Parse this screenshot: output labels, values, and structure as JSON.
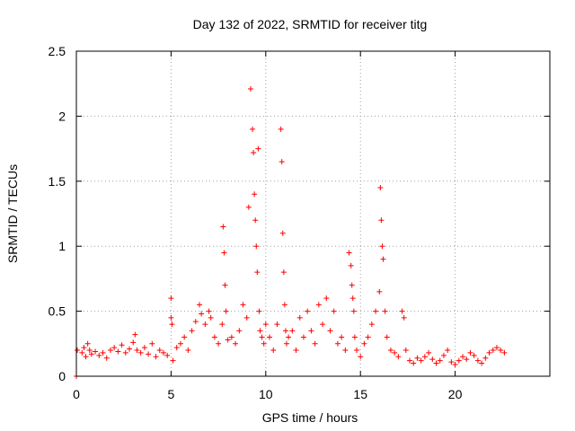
{
  "chart_data": {
    "type": "scatter",
    "title": "Day 132 of 2022, SRMTID for receiver titg",
    "xlabel": "GPS time / hours",
    "ylabel": "SRMTID / TECUs",
    "xlim": [
      0,
      25
    ],
    "ylim": [
      0,
      2.5
    ],
    "x_ticks": [
      0,
      5,
      10,
      15,
      20
    ],
    "x_tick_labels": [
      "0",
      "5",
      "10",
      "15",
      "20"
    ],
    "y_ticks": [
      0,
      0.5,
      1,
      1.5,
      2,
      2.5
    ],
    "y_tick_labels": [
      "0",
      "0.5",
      "1",
      "1.5",
      "2",
      "2.5"
    ],
    "grid": true,
    "marker": "+",
    "series": [
      {
        "name": "SRMTID",
        "color": "#ff0000",
        "x": [
          0.0,
          0.05,
          0.3,
          0.4,
          0.5,
          0.6,
          0.7,
          0.8,
          1.0,
          1.2,
          1.4,
          1.6,
          1.8,
          2.0,
          2.2,
          2.4,
          2.6,
          2.8,
          3.0,
          3.1,
          3.2,
          3.4,
          3.6,
          3.8,
          4.0,
          4.2,
          4.4,
          4.6,
          4.8,
          5.0,
          5.0,
          5.05,
          5.1,
          5.3,
          5.5,
          5.7,
          5.9,
          6.1,
          6.3,
          6.5,
          6.6,
          6.8,
          7.0,
          7.1,
          7.3,
          7.5,
          7.7,
          7.75,
          7.8,
          7.85,
          7.9,
          8.0,
          8.2,
          8.4,
          8.6,
          8.8,
          9.0,
          9.1,
          9.2,
          9.3,
          9.35,
          9.4,
          9.45,
          9.5,
          9.55,
          9.6,
          9.65,
          9.7,
          9.8,
          9.9,
          10.0,
          10.2,
          10.4,
          10.6,
          10.8,
          10.85,
          10.9,
          10.95,
          11.0,
          11.05,
          11.1,
          11.2,
          11.4,
          11.6,
          11.8,
          12.0,
          12.2,
          12.4,
          12.6,
          12.8,
          13.0,
          13.2,
          13.4,
          13.6,
          13.8,
          14.0,
          14.2,
          14.4,
          14.5,
          14.55,
          14.6,
          14.65,
          14.7,
          14.8,
          15.0,
          15.2,
          15.4,
          15.6,
          15.8,
          16.0,
          16.05,
          16.1,
          16.15,
          16.2,
          16.3,
          16.4,
          16.6,
          16.8,
          17.0,
          17.2,
          17.3,
          17.4,
          17.6,
          17.8,
          18.0,
          18.2,
          18.4,
          18.6,
          18.8,
          19.0,
          19.2,
          19.4,
          19.6,
          19.8,
          20.0,
          20.2,
          20.4,
          20.6,
          20.8,
          21.0,
          21.2,
          21.4,
          21.6,
          21.8,
          22.0,
          22.2,
          22.4,
          22.6
        ],
        "y": [
          0.0,
          0.2,
          0.18,
          0.22,
          0.15,
          0.25,
          0.2,
          0.17,
          0.19,
          0.16,
          0.18,
          0.14,
          0.2,
          0.22,
          0.19,
          0.24,
          0.18,
          0.21,
          0.26,
          0.32,
          0.2,
          0.18,
          0.22,
          0.17,
          0.25,
          0.15,
          0.2,
          0.18,
          0.16,
          0.6,
          0.45,
          0.4,
          0.12,
          0.22,
          0.25,
          0.3,
          0.2,
          0.35,
          0.42,
          0.55,
          0.48,
          0.4,
          0.5,
          0.45,
          0.3,
          0.25,
          0.4,
          1.15,
          0.95,
          0.7,
          0.5,
          0.28,
          0.3,
          0.25,
          0.35,
          0.55,
          0.45,
          1.3,
          2.21,
          1.9,
          1.72,
          1.4,
          1.2,
          1.0,
          0.8,
          1.75,
          0.5,
          0.35,
          0.3,
          0.25,
          0.4,
          0.3,
          0.2,
          0.4,
          1.9,
          1.65,
          1.1,
          0.8,
          0.55,
          0.35,
          0.25,
          0.3,
          0.35,
          0.2,
          0.45,
          0.3,
          0.5,
          0.35,
          0.25,
          0.55,
          0.4,
          0.6,
          0.35,
          0.5,
          0.25,
          0.3,
          0.2,
          0.95,
          0.85,
          0.7,
          0.6,
          0.5,
          0.3,
          0.2,
          0.15,
          0.25,
          0.3,
          0.4,
          0.5,
          0.65,
          1.45,
          1.2,
          1.0,
          0.9,
          0.5,
          0.3,
          0.2,
          0.18,
          0.15,
          0.5,
          0.45,
          0.2,
          0.12,
          0.1,
          0.14,
          0.12,
          0.15,
          0.18,
          0.13,
          0.1,
          0.12,
          0.16,
          0.2,
          0.11,
          0.09,
          0.12,
          0.15,
          0.13,
          0.18,
          0.16,
          0.12,
          0.1,
          0.14,
          0.18,
          0.2,
          0.22,
          0.2,
          0.18
        ]
      }
    ]
  }
}
